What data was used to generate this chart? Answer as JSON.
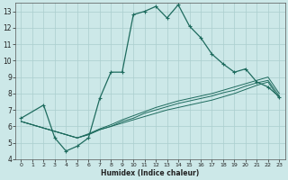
{
  "xlabel": "Humidex (Indice chaleur)",
  "bg_color": "#cce8e8",
  "grid_color": "#aacece",
  "line_color": "#1e6b5e",
  "xlim": [
    -0.5,
    23.5
  ],
  "ylim": [
    4,
    13.5
  ],
  "xticks": [
    0,
    1,
    2,
    3,
    4,
    5,
    6,
    7,
    8,
    9,
    10,
    11,
    12,
    13,
    14,
    15,
    16,
    17,
    18,
    19,
    20,
    21,
    22,
    23
  ],
  "yticks": [
    4,
    5,
    6,
    7,
    8,
    9,
    10,
    11,
    12,
    13
  ],
  "line1_x": [
    0,
    2,
    3,
    4,
    5,
    6,
    7,
    8,
    9,
    10,
    11,
    12,
    13,
    14,
    15,
    16,
    17,
    18,
    19,
    20,
    21,
    22,
    23
  ],
  "line1_y": [
    6.5,
    7.3,
    5.3,
    4.5,
    4.8,
    5.3,
    7.7,
    9.3,
    9.3,
    12.8,
    13.0,
    13.3,
    12.6,
    13.4,
    12.1,
    11.4,
    10.4,
    9.8,
    9.3,
    9.5,
    8.7,
    8.4,
    7.8
  ],
  "line2_x": [
    0,
    5,
    6,
    7,
    8,
    9,
    10,
    11,
    12,
    13,
    14,
    15,
    16,
    17,
    18,
    19,
    20,
    21,
    22,
    23
  ],
  "line2_y": [
    6.3,
    5.3,
    5.5,
    5.8,
    6.0,
    6.2,
    6.4,
    6.6,
    6.8,
    7.0,
    7.15,
    7.3,
    7.45,
    7.6,
    7.8,
    8.0,
    8.25,
    8.5,
    8.7,
    7.7
  ],
  "line3_x": [
    0,
    5,
    6,
    7,
    8,
    9,
    10,
    11,
    12,
    13,
    14,
    15,
    16,
    17,
    18,
    19,
    20,
    21,
    22,
    23
  ],
  "line3_y": [
    6.3,
    5.3,
    5.5,
    5.8,
    6.0,
    6.3,
    6.5,
    6.8,
    7.0,
    7.2,
    7.4,
    7.55,
    7.7,
    7.85,
    8.05,
    8.2,
    8.45,
    8.65,
    8.8,
    7.85
  ],
  "line4_x": [
    0,
    5,
    6,
    7,
    8,
    9,
    10,
    11,
    12,
    13,
    14,
    15,
    16,
    17,
    18,
    19,
    20,
    21,
    22,
    23
  ],
  "line4_y": [
    6.3,
    5.3,
    5.55,
    5.85,
    6.1,
    6.4,
    6.65,
    6.9,
    7.15,
    7.35,
    7.55,
    7.7,
    7.85,
    8.0,
    8.2,
    8.4,
    8.6,
    8.8,
    9.0,
    8.0
  ]
}
